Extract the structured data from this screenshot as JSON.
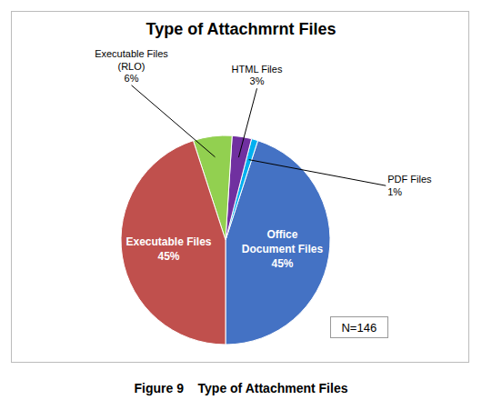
{
  "chart_data": {
    "type": "pie",
    "title": "Type of Attachmrnt Files",
    "categories": [
      "Office\nDocument Files\n45%",
      "PDF Files\n1%",
      "HTML Files\n3%",
      "Executable Files\n(RLO)\n6%",
      "Executable Files\n45%"
    ],
    "values": [
      45,
      1,
      3,
      6,
      45
    ],
    "colors": [
      "#4472C4",
      "#00B0F0",
      "#7030A0",
      "#92D050",
      "#C0504D"
    ],
    "annotations": [
      "N=146",
      "Figure 9    Type of Attachment Files"
    ]
  }
}
